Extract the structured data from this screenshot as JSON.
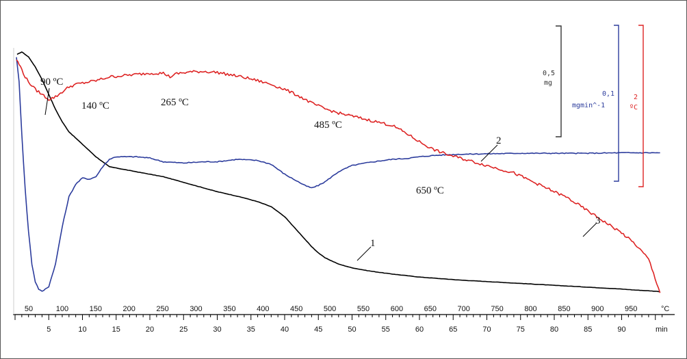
{
  "chart_data": {
    "type": "line",
    "title": "",
    "top_axis": {
      "label": "°C",
      "ticks": [
        "50",
        "100",
        "150",
        "200",
        "250",
        "300",
        "350",
        "400",
        "450",
        "500",
        "550",
        "600",
        "650",
        "700",
        "750",
        "800",
        "850",
        "900",
        "950"
      ],
      "range": [
        30,
        1000
      ]
    },
    "bottom_axis": {
      "label": "min",
      "ticks": [
        "5",
        "10",
        "15",
        "20",
        "25",
        "30",
        "35",
        "40",
        "45",
        "50",
        "55",
        "60",
        "65",
        "70",
        "75",
        "80",
        "85",
        "90"
      ],
      "range": [
        0,
        96
      ]
    },
    "series": [
      {
        "name": "1",
        "color": "#000000",
        "x": [
          0.3,
          1,
          2,
          3,
          4,
          5,
          6,
          7,
          8,
          10,
          12,
          13,
          14,
          16,
          18,
          20,
          22,
          24,
          26,
          28,
          30,
          32,
          34,
          36,
          38,
          40,
          42,
          43,
          44,
          45,
          46,
          48,
          50,
          52,
          54,
          56,
          58,
          60,
          62,
          64,
          66,
          68,
          70,
          72,
          74,
          76,
          78,
          80,
          82,
          84,
          86,
          88,
          90,
          92,
          94,
          95.7
        ],
        "y": [
          96,
          97,
          95,
          91,
          86,
          80,
          74,
          69,
          65,
          60,
          55,
          53,
          51,
          50,
          49,
          48,
          47,
          45.5,
          44,
          42.5,
          41,
          39.8,
          38.5,
          37,
          35,
          31,
          25,
          22,
          19,
          16.5,
          14.5,
          12,
          10.5,
          9.5,
          8.7,
          8,
          7.4,
          6.8,
          6.4,
          6,
          5.6,
          5.3,
          5,
          4.7,
          4.4,
          4.1,
          3.8,
          3.5,
          3.2,
          2.9,
          2.6,
          2.3,
          2,
          1.6,
          1.3,
          1
        ]
      },
      {
        "name": "2",
        "color": "#2b3b9c",
        "x": [
          0.2,
          0.6,
          1,
          1.5,
          2,
          2.5,
          3,
          3.5,
          4,
          5,
          6,
          7,
          8,
          9,
          10,
          11,
          12,
          13,
          14,
          15,
          16,
          18,
          20,
          22,
          25,
          28,
          30,
          33,
          36,
          38,
          40,
          42,
          43,
          44,
          45,
          46,
          48,
          50,
          52,
          54,
          56,
          58,
          60,
          62,
          64,
          66,
          70,
          75,
          80,
          85,
          90,
          95,
          95.7
        ],
        "y": [
          95,
          85,
          64,
          42,
          25,
          12,
          5,
          2,
          1,
          3,
          12,
          27,
          39,
          44,
          46.5,
          46,
          47,
          51,
          54,
          55,
          55,
          55,
          54.5,
          53,
          52.5,
          53,
          53,
          54,
          53.5,
          52,
          48,
          45,
          43.5,
          42.5,
          43.5,
          45,
          49,
          51.5,
          52.5,
          53.3,
          54,
          54.3,
          55,
          55.5,
          55.8,
          56,
          56.2,
          56.4,
          56.4,
          56.4,
          56.6,
          56.6,
          56.6
        ]
      },
      {
        "name": "3",
        "color": "#dd2222",
        "x": [
          0.2,
          0.6,
          1,
          1.5,
          2,
          3,
          4,
          5,
          6,
          7,
          8,
          9,
          10,
          12,
          14,
          16,
          18,
          20,
          22,
          23,
          24,
          26,
          28,
          30,
          32,
          34,
          36,
          38,
          40,
          42,
          44,
          46,
          48,
          50,
          52,
          54,
          56,
          58,
          60,
          62,
          64,
          66,
          68,
          70,
          72,
          74,
          76,
          78,
          80,
          82,
          84,
          86,
          88,
          90,
          92,
          94,
          95.7
        ],
        "y": [
          94,
          92,
          90,
          87,
          85,
          82,
          80,
          78,
          79,
          81,
          83,
          84,
          84.5,
          85.5,
          87,
          87.5,
          88,
          88.5,
          88.5,
          87,
          88.3,
          89,
          89.2,
          88.8,
          87.8,
          86.8,
          85.5,
          84,
          82,
          79.5,
          76.5,
          74.2,
          72.5,
          71.3,
          70,
          68.8,
          67.5,
          64.5,
          61,
          58,
          56,
          54.5,
          53,
          51.5,
          50,
          48.5,
          46,
          43.5,
          41,
          38.5,
          35,
          31.5,
          28,
          24.5,
          20,
          14,
          0.5
        ]
      }
    ],
    "annotations": [
      "90 ºC",
      "140 ºC",
      "265 ºC",
      "485 ºC",
      "650 ºC"
    ],
    "curve_labels": [
      "1",
      "2",
      "3"
    ],
    "scale_bars": [
      {
        "value": "0,5",
        "unit": "mg",
        "color": "#333333"
      },
      {
        "value": "0,1",
        "unit": "mgmin^-1",
        "color": "#2b3b9c"
      },
      {
        "value": "2",
        "unit": "ºC",
        "color": "#dd2222"
      }
    ],
    "grid": false,
    "legend": "none"
  }
}
